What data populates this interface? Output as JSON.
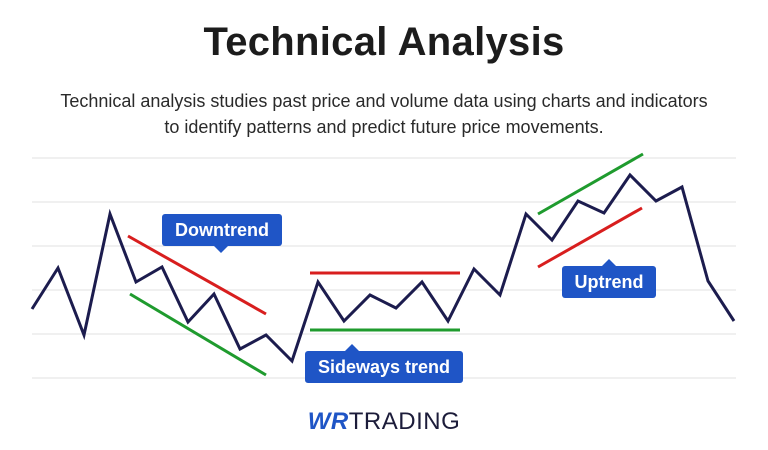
{
  "header": {
    "title": "Technical Analysis",
    "subtitle": "Technical analysis studies past price and volume data using charts and indicators to identify patterns and predict future price movements."
  },
  "labels": {
    "downtrend": "Downtrend",
    "sideways": "Sideways trend",
    "uptrend": "Uptrend"
  },
  "logo": {
    "mark": "WR",
    "text": "TRADING"
  },
  "colors": {
    "price_line": "#1c1c4e",
    "resistance": "#d81e1e",
    "support": "#1f9b2e",
    "label_bg": "#1f55c6",
    "gridline": "#e2e2e2"
  }
}
